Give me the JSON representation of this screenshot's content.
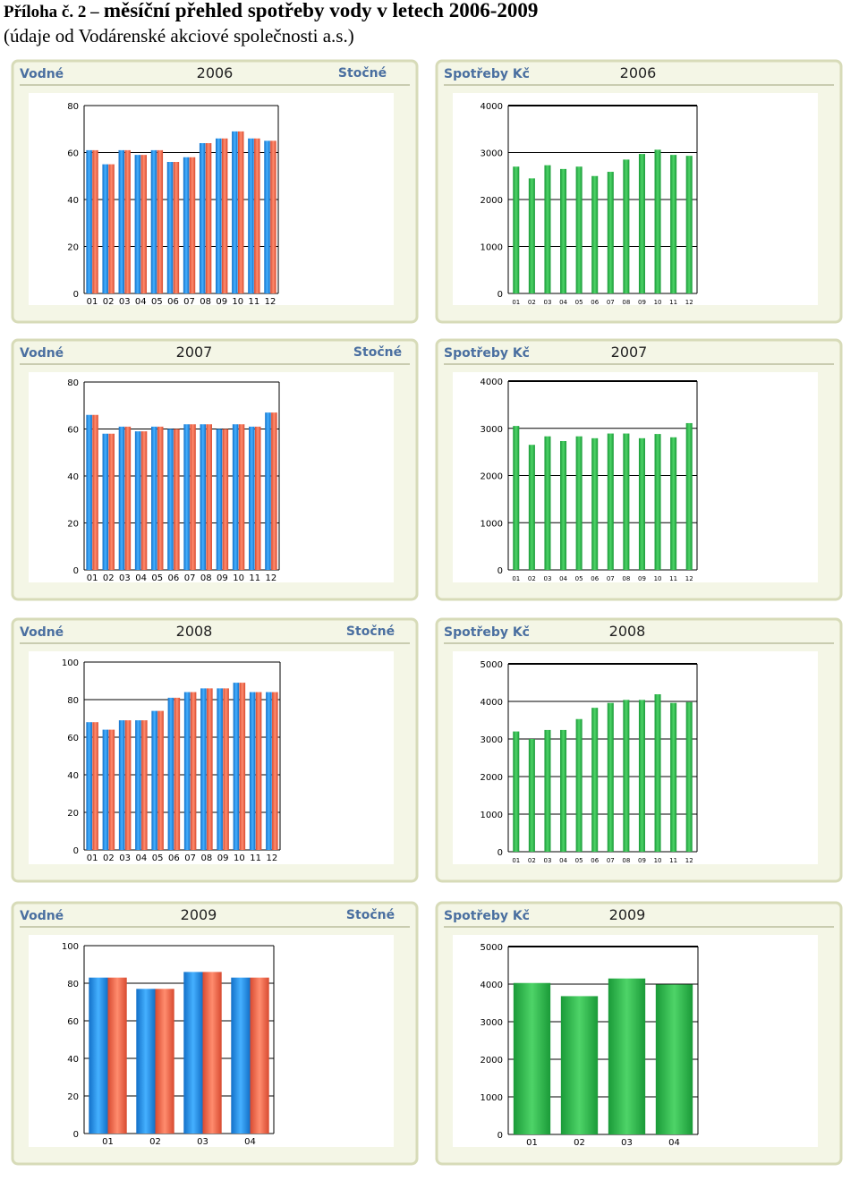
{
  "heading": {
    "prefix": "Příloha č. 2 –",
    "main": "měsíční přehled spotřeby vody v letech 2006-2009",
    "subtitle": "(údaje od Vodárenské akciové společnosti a.s.)"
  },
  "colors": {
    "panel_bg": "#f4f6e6",
    "panel_border": "#d7dbb8",
    "header_text": "#4a6fa0",
    "header_line": "#c9ccb0",
    "vodne_bar": "#1e90e8",
    "stocne_bar": "#f06a4a",
    "green_bar": "#2ab84a"
  },
  "chart_data": [
    {
      "type": "bar",
      "panel": "vodne-stocne",
      "left_label": "Vodné",
      "year": "2006",
      "right_label": "Stočné",
      "categories": [
        "01",
        "02",
        "03",
        "04",
        "05",
        "06",
        "07",
        "08",
        "09",
        "10",
        "11",
        "12"
      ],
      "series": [
        {
          "name": "Vodné",
          "values": [
            61,
            55,
            61,
            59,
            61,
            56,
            58,
            64,
            66,
            69,
            66,
            65
          ]
        },
        {
          "name": "Stočné",
          "values": [
            61,
            55,
            61,
            59,
            61,
            56,
            58,
            64,
            66,
            69,
            66,
            65
          ]
        }
      ],
      "ylim": [
        0,
        80
      ],
      "yticks": [
        "0",
        "20",
        "40",
        "60",
        "80"
      ]
    },
    {
      "type": "bar",
      "panel": "spotreby",
      "left_label": "Spotřeby Kč",
      "year": "2006",
      "categories": [
        "01",
        "02",
        "03",
        "04",
        "05",
        "06",
        "07",
        "08",
        "09",
        "10",
        "11",
        "12"
      ],
      "values": [
        2700,
        2450,
        2730,
        2650,
        2700,
        2500,
        2590,
        2850,
        2970,
        3060,
        2950,
        2930
      ],
      "ylim": [
        0,
        4000
      ],
      "yticks": [
        "0",
        "1000",
        "2000",
        "3000",
        "4000"
      ]
    },
    {
      "type": "bar",
      "panel": "vodne-stocne",
      "left_label": "Vodné",
      "year": "2007",
      "right_label": "Stočné",
      "categories": [
        "01",
        "02",
        "03",
        "04",
        "05",
        "06",
        "07",
        "08",
        "09",
        "10",
        "11",
        "12"
      ],
      "series": [
        {
          "name": "Vodné",
          "values": [
            66,
            58,
            61,
            59,
            61,
            60,
            62,
            62,
            60,
            62,
            61,
            67
          ]
        },
        {
          "name": "Stočné",
          "values": [
            66,
            58,
            61,
            59,
            61,
            60,
            62,
            62,
            60,
            62,
            61,
            67
          ]
        }
      ],
      "ylim": [
        0,
        80
      ],
      "yticks": [
        "0",
        "20",
        "40",
        "60",
        "80"
      ]
    },
    {
      "type": "bar",
      "panel": "spotreby",
      "left_label": "Spotřeby Kč",
      "year": "2007",
      "categories": [
        "01",
        "02",
        "03",
        "04",
        "05",
        "06",
        "07",
        "08",
        "09",
        "10",
        "11",
        "12"
      ],
      "values": [
        3050,
        2650,
        2830,
        2730,
        2830,
        2790,
        2890,
        2890,
        2790,
        2880,
        2810,
        3110
      ],
      "ylim": [
        0,
        4000
      ],
      "yticks": [
        "0",
        "1000",
        "2000",
        "3000",
        "4000"
      ]
    },
    {
      "type": "bar",
      "panel": "vodne-stocne",
      "left_label": "Vodné",
      "year": "2008",
      "right_label": "Stočné",
      "categories": [
        "01",
        "02",
        "03",
        "04",
        "05",
        "06",
        "07",
        "08",
        "09",
        "10",
        "11",
        "12"
      ],
      "series": [
        {
          "name": "Vodné",
          "values": [
            68,
            64,
            69,
            69,
            74,
            81,
            84,
            86,
            86,
            89,
            84,
            84
          ]
        },
        {
          "name": "Stočné",
          "values": [
            68,
            64,
            69,
            69,
            74,
            81,
            84,
            86,
            86,
            89,
            84,
            84
          ]
        }
      ],
      "ylim": [
        0,
        100
      ],
      "yticks": [
        "0",
        "20",
        "40",
        "60",
        "80",
        "100"
      ]
    },
    {
      "type": "bar",
      "panel": "spotreby",
      "left_label": "Spotřeby Kč",
      "year": "2008",
      "categories": [
        "01",
        "02",
        "03",
        "04",
        "05",
        "06",
        "07",
        "08",
        "09",
        "10",
        "11",
        "12"
      ],
      "values": [
        3200,
        3000,
        3240,
        3240,
        3530,
        3830,
        3960,
        4040,
        4040,
        4190,
        3960,
        3980
      ],
      "ylim": [
        0,
        5000
      ],
      "yticks": [
        "0",
        "1000",
        "2000",
        "3000",
        "4000",
        "5000"
      ]
    },
    {
      "type": "bar",
      "panel": "vodne-stocne",
      "left_label": "Vodné",
      "year": "2009",
      "right_label": "Stočné",
      "categories": [
        "01",
        "02",
        "03",
        "04"
      ],
      "series": [
        {
          "name": "Vodné",
          "values": [
            83,
            77,
            86,
            83
          ]
        },
        {
          "name": "Stočné",
          "values": [
            83,
            77,
            86,
            83
          ]
        }
      ],
      "ylim": [
        0,
        100
      ],
      "yticks": [
        "0",
        "20",
        "40",
        "60",
        "80",
        "100"
      ]
    },
    {
      "type": "bar",
      "panel": "spotreby",
      "left_label": "Spotřeby Kč",
      "year": "2009",
      "categories": [
        "01",
        "02",
        "03",
        "04"
      ],
      "values": [
        4030,
        3680,
        4150,
        3990
      ],
      "ylim": [
        0,
        5000
      ],
      "yticks": [
        "0",
        "1000",
        "2000",
        "3000",
        "4000",
        "5000"
      ]
    }
  ]
}
